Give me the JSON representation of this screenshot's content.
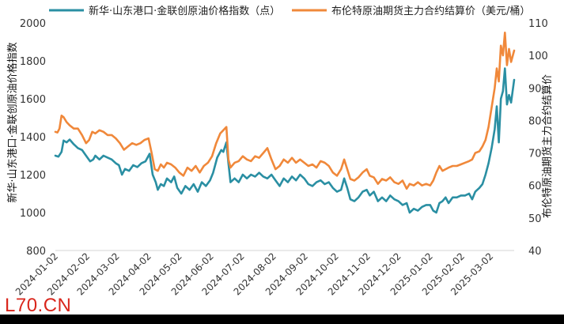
{
  "watermark": "L70.CN",
  "chart_data": {
    "type": "line",
    "dual_axis": true,
    "x_range": [
      "2024-01-02",
      "2025-03-25"
    ],
    "x_tick_labels": [
      "2024-01-02",
      "2024-02-02",
      "2024-03-02",
      "2024-04-02",
      "2024-05-02",
      "2024-06-02",
      "2024-07-02",
      "2024-08-02",
      "2024-09-02",
      "2024-10-02",
      "2024-11-02",
      "2024-12-02",
      "2025-01-02",
      "2025-02-02",
      "2025-03-02"
    ],
    "y_left": {
      "label": "新华·山东港口·金联创原油价格指数",
      "range": [
        800,
        2000
      ],
      "ticks": [
        "800",
        "1000",
        "1200",
        "1400",
        "1600",
        "1800",
        "2000"
      ]
    },
    "y_right": {
      "label": "布伦特原油期货主力合约结算价",
      "range": [
        40,
        110
      ],
      "ticks": [
        "40",
        "50",
        "60",
        "70",
        "80",
        "90",
        "100",
        "110"
      ]
    },
    "legend_position": "top",
    "grid": false,
    "series": [
      {
        "name": "新华·山东港口·金联创原油价格指数（点）",
        "axis": "left",
        "color": "#2a8fa3",
        "points": [
          [
            "2024-01-02",
            1300
          ],
          [
            "2024-01-05",
            1295
          ],
          [
            "2024-01-08",
            1320
          ],
          [
            "2024-01-10",
            1380
          ],
          [
            "2024-01-13",
            1370
          ],
          [
            "2024-01-16",
            1385
          ],
          [
            "2024-01-20",
            1360
          ],
          [
            "2024-01-24",
            1340
          ],
          [
            "2024-01-28",
            1330
          ],
          [
            "2024-02-01",
            1300
          ],
          [
            "2024-02-05",
            1270
          ],
          [
            "2024-02-08",
            1280
          ],
          [
            "2024-02-10",
            1300
          ],
          [
            "2024-02-14",
            1280
          ],
          [
            "2024-02-18",
            1300
          ],
          [
            "2024-02-22",
            1290
          ],
          [
            "2024-02-26",
            1280
          ],
          [
            "2024-03-01",
            1260
          ],
          [
            "2024-03-04",
            1250
          ],
          [
            "2024-03-07",
            1200
          ],
          [
            "2024-03-10",
            1230
          ],
          [
            "2024-03-14",
            1220
          ],
          [
            "2024-03-18",
            1250
          ],
          [
            "2024-03-22",
            1240
          ],
          [
            "2024-03-26",
            1260
          ],
          [
            "2024-03-30",
            1270
          ],
          [
            "2024-04-03",
            1310
          ],
          [
            "2024-04-06",
            1200
          ],
          [
            "2024-04-09",
            1160
          ],
          [
            "2024-04-11",
            1120
          ],
          [
            "2024-04-14",
            1150
          ],
          [
            "2024-04-17",
            1140
          ],
          [
            "2024-04-20",
            1180
          ],
          [
            "2024-04-24",
            1160
          ],
          [
            "2024-04-27",
            1190
          ],
          [
            "2024-04-30",
            1130
          ],
          [
            "2024-05-04",
            1100
          ],
          [
            "2024-05-08",
            1140
          ],
          [
            "2024-05-12",
            1120
          ],
          [
            "2024-05-16",
            1150
          ],
          [
            "2024-05-20",
            1110
          ],
          [
            "2024-05-24",
            1160
          ],
          [
            "2024-05-28",
            1140
          ],
          [
            "2024-06-01",
            1170
          ],
          [
            "2024-06-04",
            1210
          ],
          [
            "2024-06-08",
            1290
          ],
          [
            "2024-06-12",
            1330
          ],
          [
            "2024-06-14",
            1320
          ],
          [
            "2024-06-17",
            1370
          ],
          [
            "2024-06-19",
            1260
          ],
          [
            "2024-06-21",
            1160
          ],
          [
            "2024-06-25",
            1180
          ],
          [
            "2024-06-29",
            1160
          ],
          [
            "2024-07-03",
            1200
          ],
          [
            "2024-07-07",
            1180
          ],
          [
            "2024-07-11",
            1200
          ],
          [
            "2024-07-15",
            1190
          ],
          [
            "2024-07-19",
            1210
          ],
          [
            "2024-07-23",
            1190
          ],
          [
            "2024-07-27",
            1180
          ],
          [
            "2024-07-31",
            1200
          ],
          [
            "2024-08-04",
            1170
          ],
          [
            "2024-08-08",
            1140
          ],
          [
            "2024-08-12",
            1180
          ],
          [
            "2024-08-16",
            1160
          ],
          [
            "2024-08-20",
            1190
          ],
          [
            "2024-08-24",
            1170
          ],
          [
            "2024-08-28",
            1200
          ],
          [
            "2024-09-01",
            1180
          ],
          [
            "2024-09-05",
            1150
          ],
          [
            "2024-09-09",
            1140
          ],
          [
            "2024-09-13",
            1160
          ],
          [
            "2024-09-17",
            1170
          ],
          [
            "2024-09-21",
            1150
          ],
          [
            "2024-09-25",
            1160
          ],
          [
            "2024-09-29",
            1130
          ],
          [
            "2024-10-03",
            1110
          ],
          [
            "2024-10-07",
            1120
          ],
          [
            "2024-10-10",
            1180
          ],
          [
            "2024-10-13",
            1130
          ],
          [
            "2024-10-16",
            1070
          ],
          [
            "2024-10-20",
            1060
          ],
          [
            "2024-10-24",
            1080
          ],
          [
            "2024-10-28",
            1110
          ],
          [
            "2024-11-01",
            1120
          ],
          [
            "2024-11-04",
            1090
          ],
          [
            "2024-11-08",
            1110
          ],
          [
            "2024-11-12",
            1060
          ],
          [
            "2024-11-16",
            1080
          ],
          [
            "2024-11-20",
            1060
          ],
          [
            "2024-11-24",
            1090
          ],
          [
            "2024-11-28",
            1070
          ],
          [
            "2024-12-02",
            1060
          ],
          [
            "2024-12-06",
            1040
          ],
          [
            "2024-12-10",
            1050
          ],
          [
            "2024-12-13",
            1000
          ],
          [
            "2024-12-17",
            1020
          ],
          [
            "2024-12-21",
            1010
          ],
          [
            "2024-12-25",
            1030
          ],
          [
            "2024-12-29",
            1040
          ],
          [
            "2025-01-02",
            1040
          ],
          [
            "2025-01-05",
            1010
          ],
          [
            "2025-01-08",
            1000
          ],
          [
            "2025-01-11",
            1050
          ],
          [
            "2025-01-14",
            1060
          ],
          [
            "2025-01-17",
            1080
          ],
          [
            "2025-01-20",
            1050
          ],
          [
            "2025-01-24",
            1080
          ],
          [
            "2025-01-28",
            1080
          ],
          [
            "2025-02-01",
            1090
          ],
          [
            "2025-02-05",
            1090
          ],
          [
            "2025-02-09",
            1100
          ],
          [
            "2025-02-12",
            1070
          ],
          [
            "2025-02-15",
            1110
          ],
          [
            "2025-02-19",
            1130
          ],
          [
            "2025-02-22",
            1150
          ],
          [
            "2025-02-25",
            1200
          ],
          [
            "2025-02-28",
            1260
          ],
          [
            "2025-03-03",
            1340
          ],
          [
            "2025-03-06",
            1440
          ],
          [
            "2025-03-08",
            1560
          ],
          [
            "2025-03-10",
            1370
          ],
          [
            "2025-03-12",
            1600
          ],
          [
            "2025-03-14",
            1640
          ],
          [
            "2025-03-16",
            1760
          ],
          [
            "2025-03-18",
            1570
          ],
          [
            "2025-03-20",
            1620
          ],
          [
            "2025-03-22",
            1580
          ],
          [
            "2025-03-25",
            1700
          ]
        ]
      },
      {
        "name": "布伦特原油期货主力合约结算价（美元/桶）",
        "axis": "right",
        "color": "#f0883a",
        "points": [
          [
            "2024-01-02",
            76.5
          ],
          [
            "2024-01-04",
            76.3
          ],
          [
            "2024-01-06",
            77.5
          ],
          [
            "2024-01-08",
            81.5
          ],
          [
            "2024-01-10",
            81.0
          ],
          [
            "2024-01-13",
            79.5
          ],
          [
            "2024-01-16",
            78.5
          ],
          [
            "2024-01-20",
            77.5
          ],
          [
            "2024-01-24",
            77.5
          ],
          [
            "2024-01-28",
            75.5
          ],
          [
            "2024-02-01",
            73.0
          ],
          [
            "2024-02-04",
            74.0
          ],
          [
            "2024-02-07",
            76.5
          ],
          [
            "2024-02-10",
            76.0
          ],
          [
            "2024-02-14",
            77.0
          ],
          [
            "2024-02-18",
            76.5
          ],
          [
            "2024-02-22",
            75.5
          ],
          [
            "2024-02-26",
            75.5
          ],
          [
            "2024-03-01",
            74.5
          ],
          [
            "2024-03-05",
            73.0
          ],
          [
            "2024-03-09",
            71.0
          ],
          [
            "2024-03-13",
            72.0
          ],
          [
            "2024-03-17",
            73.0
          ],
          [
            "2024-03-21",
            72.5
          ],
          [
            "2024-03-25",
            73.0
          ],
          [
            "2024-03-29",
            74.0
          ],
          [
            "2024-04-02",
            74.5
          ],
          [
            "2024-04-05",
            70.0
          ],
          [
            "2024-04-08",
            65.0
          ],
          [
            "2024-04-11",
            64.5
          ],
          [
            "2024-04-14",
            66.5
          ],
          [
            "2024-04-17",
            65.5
          ],
          [
            "2024-04-20",
            67.0
          ],
          [
            "2024-04-24",
            66.5
          ],
          [
            "2024-04-28",
            65.5
          ],
          [
            "2024-05-02",
            64.0
          ],
          [
            "2024-05-06",
            63.0
          ],
          [
            "2024-05-10",
            65.5
          ],
          [
            "2024-05-14",
            64.5
          ],
          [
            "2024-05-18",
            66.0
          ],
          [
            "2024-05-22",
            64.0
          ],
          [
            "2024-05-26",
            66.0
          ],
          [
            "2024-05-30",
            67.0
          ],
          [
            "2024-06-03",
            69.0
          ],
          [
            "2024-06-07",
            73.0
          ],
          [
            "2024-06-11",
            76.0
          ],
          [
            "2024-06-14",
            77.0
          ],
          [
            "2024-06-17",
            78.0
          ],
          [
            "2024-06-19",
            68.0
          ],
          [
            "2024-06-21",
            65.5
          ],
          [
            "2024-06-25",
            67.0
          ],
          [
            "2024-06-29",
            67.5
          ],
          [
            "2024-07-03",
            69.0
          ],
          [
            "2024-07-07",
            68.0
          ],
          [
            "2024-07-11",
            67.5
          ],
          [
            "2024-07-15",
            69.0
          ],
          [
            "2024-07-19",
            68.5
          ],
          [
            "2024-07-23",
            70.0
          ],
          [
            "2024-07-27",
            71.5
          ],
          [
            "2024-07-31",
            68.0
          ],
          [
            "2024-08-04",
            65.0
          ],
          [
            "2024-08-08",
            66.0
          ],
          [
            "2024-08-12",
            68.0
          ],
          [
            "2024-08-16",
            67.0
          ],
          [
            "2024-08-20",
            68.5
          ],
          [
            "2024-08-24",
            67.0
          ],
          [
            "2024-08-28",
            68.0
          ],
          [
            "2024-09-01",
            67.0
          ],
          [
            "2024-09-05",
            66.0
          ],
          [
            "2024-09-09",
            66.5
          ],
          [
            "2024-09-13",
            65.5
          ],
          [
            "2024-09-17",
            67.5
          ],
          [
            "2024-09-21",
            67.0
          ],
          [
            "2024-09-25",
            66.0
          ],
          [
            "2024-09-29",
            64.0
          ],
          [
            "2024-10-03",
            63.0
          ],
          [
            "2024-10-07",
            65.0
          ],
          [
            "2024-10-10",
            68.0
          ],
          [
            "2024-10-13",
            65.0
          ],
          [
            "2024-10-16",
            62.0
          ],
          [
            "2024-10-20",
            61.5
          ],
          [
            "2024-10-24",
            62.5
          ],
          [
            "2024-10-28",
            64.0
          ],
          [
            "2024-11-01",
            65.0
          ],
          [
            "2024-11-04",
            63.0
          ],
          [
            "2024-11-08",
            62.5
          ],
          [
            "2024-11-12",
            60.5
          ],
          [
            "2024-11-16",
            62.0
          ],
          [
            "2024-11-20",
            61.5
          ],
          [
            "2024-11-24",
            62.5
          ],
          [
            "2024-11-28",
            61.0
          ],
          [
            "2024-12-02",
            60.5
          ],
          [
            "2024-12-06",
            61.5
          ],
          [
            "2024-12-10",
            59.0
          ],
          [
            "2024-12-13",
            60.5
          ],
          [
            "2024-12-17",
            60.0
          ],
          [
            "2024-12-21",
            61.0
          ],
          [
            "2024-12-25",
            60.0
          ],
          [
            "2024-12-29",
            60.5
          ],
          [
            "2025-01-02",
            60.0
          ],
          [
            "2025-01-05",
            61.5
          ],
          [
            "2025-01-08",
            64.0
          ],
          [
            "2025-01-11",
            66.0
          ],
          [
            "2025-01-14",
            64.5
          ],
          [
            "2025-01-17",
            65.0
          ],
          [
            "2025-01-20",
            65.5
          ],
          [
            "2025-01-24",
            66.0
          ],
          [
            "2025-01-28",
            66.0
          ],
          [
            "2025-02-01",
            66.5
          ],
          [
            "2025-02-05",
            67.0
          ],
          [
            "2025-02-09",
            67.5
          ],
          [
            "2025-02-12",
            68.0
          ],
          [
            "2025-02-15",
            70.0
          ],
          [
            "2025-02-19",
            70.5
          ],
          [
            "2025-02-22",
            72.0
          ],
          [
            "2025-02-25",
            74.0
          ],
          [
            "2025-02-28",
            78.0
          ],
          [
            "2025-03-03",
            84.0
          ],
          [
            "2025-03-06",
            90.0
          ],
          [
            "2025-03-08",
            96.0
          ],
          [
            "2025-03-10",
            92.0
          ],
          [
            "2025-03-12",
            103.0
          ],
          [
            "2025-03-14",
            100.0
          ],
          [
            "2025-03-16",
            107.0
          ],
          [
            "2025-03-18",
            97.0
          ],
          [
            "2025-03-20",
            102.0
          ],
          [
            "2025-03-22",
            98.0
          ],
          [
            "2025-03-25",
            101.5
          ]
        ]
      }
    ]
  }
}
